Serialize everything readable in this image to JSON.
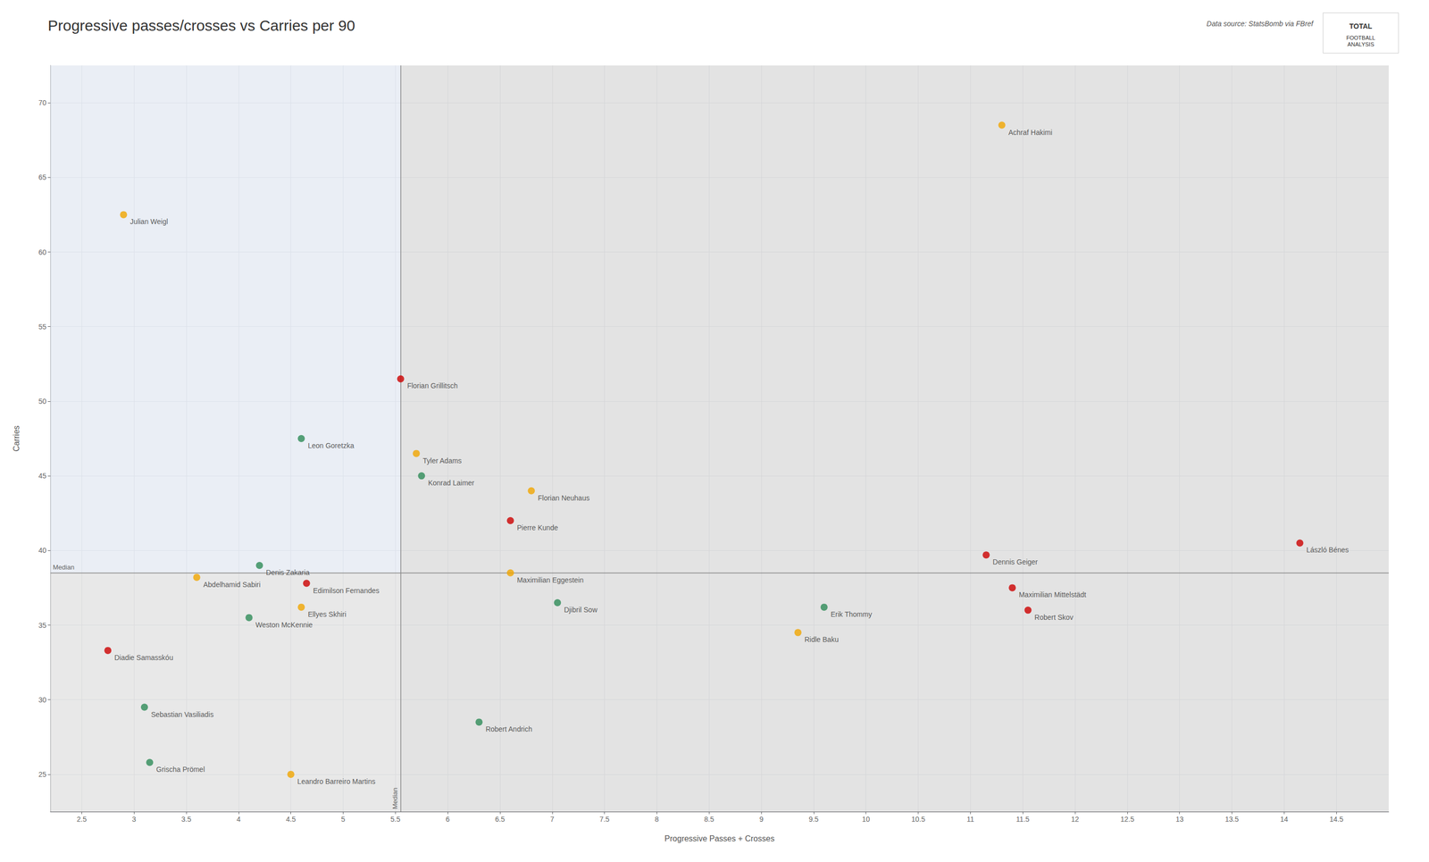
{
  "chart_data": {
    "type": "scatter",
    "title": "Progressive passes/crosses vs Carries per 90",
    "xlabel": "Progressive Passes + Crosses",
    "ylabel": "Carries",
    "source": "Data source: StatsBomb via FBref",
    "logo": [
      "TOTAL",
      "FOOTBALL\nANALYSIS"
    ],
    "median_label": "Median",
    "median_x": 5.55,
    "median_y": 38.5,
    "quadrant_colors": [
      "#dce3ef",
      "#d8d8d8",
      "#d0d0d0",
      "#d0d0d0"
    ],
    "grid": true,
    "xlim": [
      2.2,
      15.0
    ],
    "ylim": [
      22.5,
      72.5
    ],
    "xticks": [
      2.5,
      3,
      3.5,
      4,
      4.5,
      5,
      5.5,
      6,
      6.5,
      7,
      7.5,
      8,
      8.5,
      9,
      9.5,
      10,
      10.5,
      11,
      11.5,
      12,
      12.5,
      13,
      13.5,
      14,
      14.5
    ],
    "yticks": [
      25,
      30,
      35,
      40,
      45,
      50,
      55,
      60,
      65,
      70
    ],
    "points": [
      {
        "name": "Julian Weigl",
        "x": 2.9,
        "y": 62.5,
        "color": "#f0a500"
      },
      {
        "name": "Achraf Hakimi",
        "x": 11.3,
        "y": 68.5,
        "color": "#f0a500"
      },
      {
        "name": "Florian Grillitsch",
        "x": 5.55,
        "y": 51.5,
        "color": "#cc0000"
      },
      {
        "name": "Tyler Adams",
        "x": 5.7,
        "y": 46.5,
        "color": "#f0a500"
      },
      {
        "name": "Leon Goretzka",
        "x": 4.6,
        "y": 47.5,
        "color": "#2e8b57"
      },
      {
        "name": "Konrad Laimer",
        "x": 5.75,
        "y": 45.0,
        "color": "#2e8b57"
      },
      {
        "name": "Florian Neuhaus",
        "x": 6.8,
        "y": 44.0,
        "color": "#f0a500"
      },
      {
        "name": "Pierre Kunde",
        "x": 6.6,
        "y": 42.0,
        "color": "#cc0000"
      },
      {
        "name": "Denis Zakaria",
        "x": 4.2,
        "y": 39.0,
        "color": "#2e8b57"
      },
      {
        "name": "Maximilian Eggestein",
        "x": 6.6,
        "y": 38.5,
        "color": "#f0a500"
      },
      {
        "name": "Abdelhamid Sabiri",
        "x": 3.6,
        "y": 38.2,
        "color": "#f0a500"
      },
      {
        "name": "Edimilson Fernandes",
        "x": 4.65,
        "y": 37.8,
        "color": "#cc0000"
      },
      {
        "name": "Weston McKennie",
        "x": 4.1,
        "y": 35.5,
        "color": "#2e8b57"
      },
      {
        "name": "Ellyes Skhiri",
        "x": 4.6,
        "y": 36.2,
        "color": "#f0a500"
      },
      {
        "name": "Djibril Sow",
        "x": 7.05,
        "y": 36.5,
        "color": "#2e8b57"
      },
      {
        "name": "Dennis Geiger",
        "x": 11.15,
        "y": 39.7,
        "color": "#cc0000"
      },
      {
        "name": "Maximilian Mittelstädt",
        "x": 11.4,
        "y": 37.5,
        "color": "#cc0000"
      },
      {
        "name": "Erik Thommy",
        "x": 9.6,
        "y": 36.2,
        "color": "#2e8b57"
      },
      {
        "name": "Robert Skov",
        "x": 11.55,
        "y": 36.0,
        "color": "#cc0000"
      },
      {
        "name": "Ridle Baku",
        "x": 9.35,
        "y": 34.5,
        "color": "#f0a500"
      },
      {
        "name": "László Bénes",
        "x": 14.15,
        "y": 40.5,
        "color": "#cc0000"
      },
      {
        "name": "Diadie Samasskóu",
        "x": 2.75,
        "y": 33.3,
        "color": "#cc0000"
      },
      {
        "name": "Sebastian Vasiliadis",
        "x": 3.1,
        "y": 29.5,
        "color": "#2e8b57"
      },
      {
        "name": "Robert Andrich",
        "x": 6.3,
        "y": 28.5,
        "color": "#2e8b57"
      },
      {
        "name": "Grischa Prömel",
        "x": 3.15,
        "y": 25.8,
        "color": "#2e8b57"
      },
      {
        "name": "Leandro Barreiro Martins",
        "x": 4.5,
        "y": 25.0,
        "color": "#f0a500"
      }
    ]
  }
}
